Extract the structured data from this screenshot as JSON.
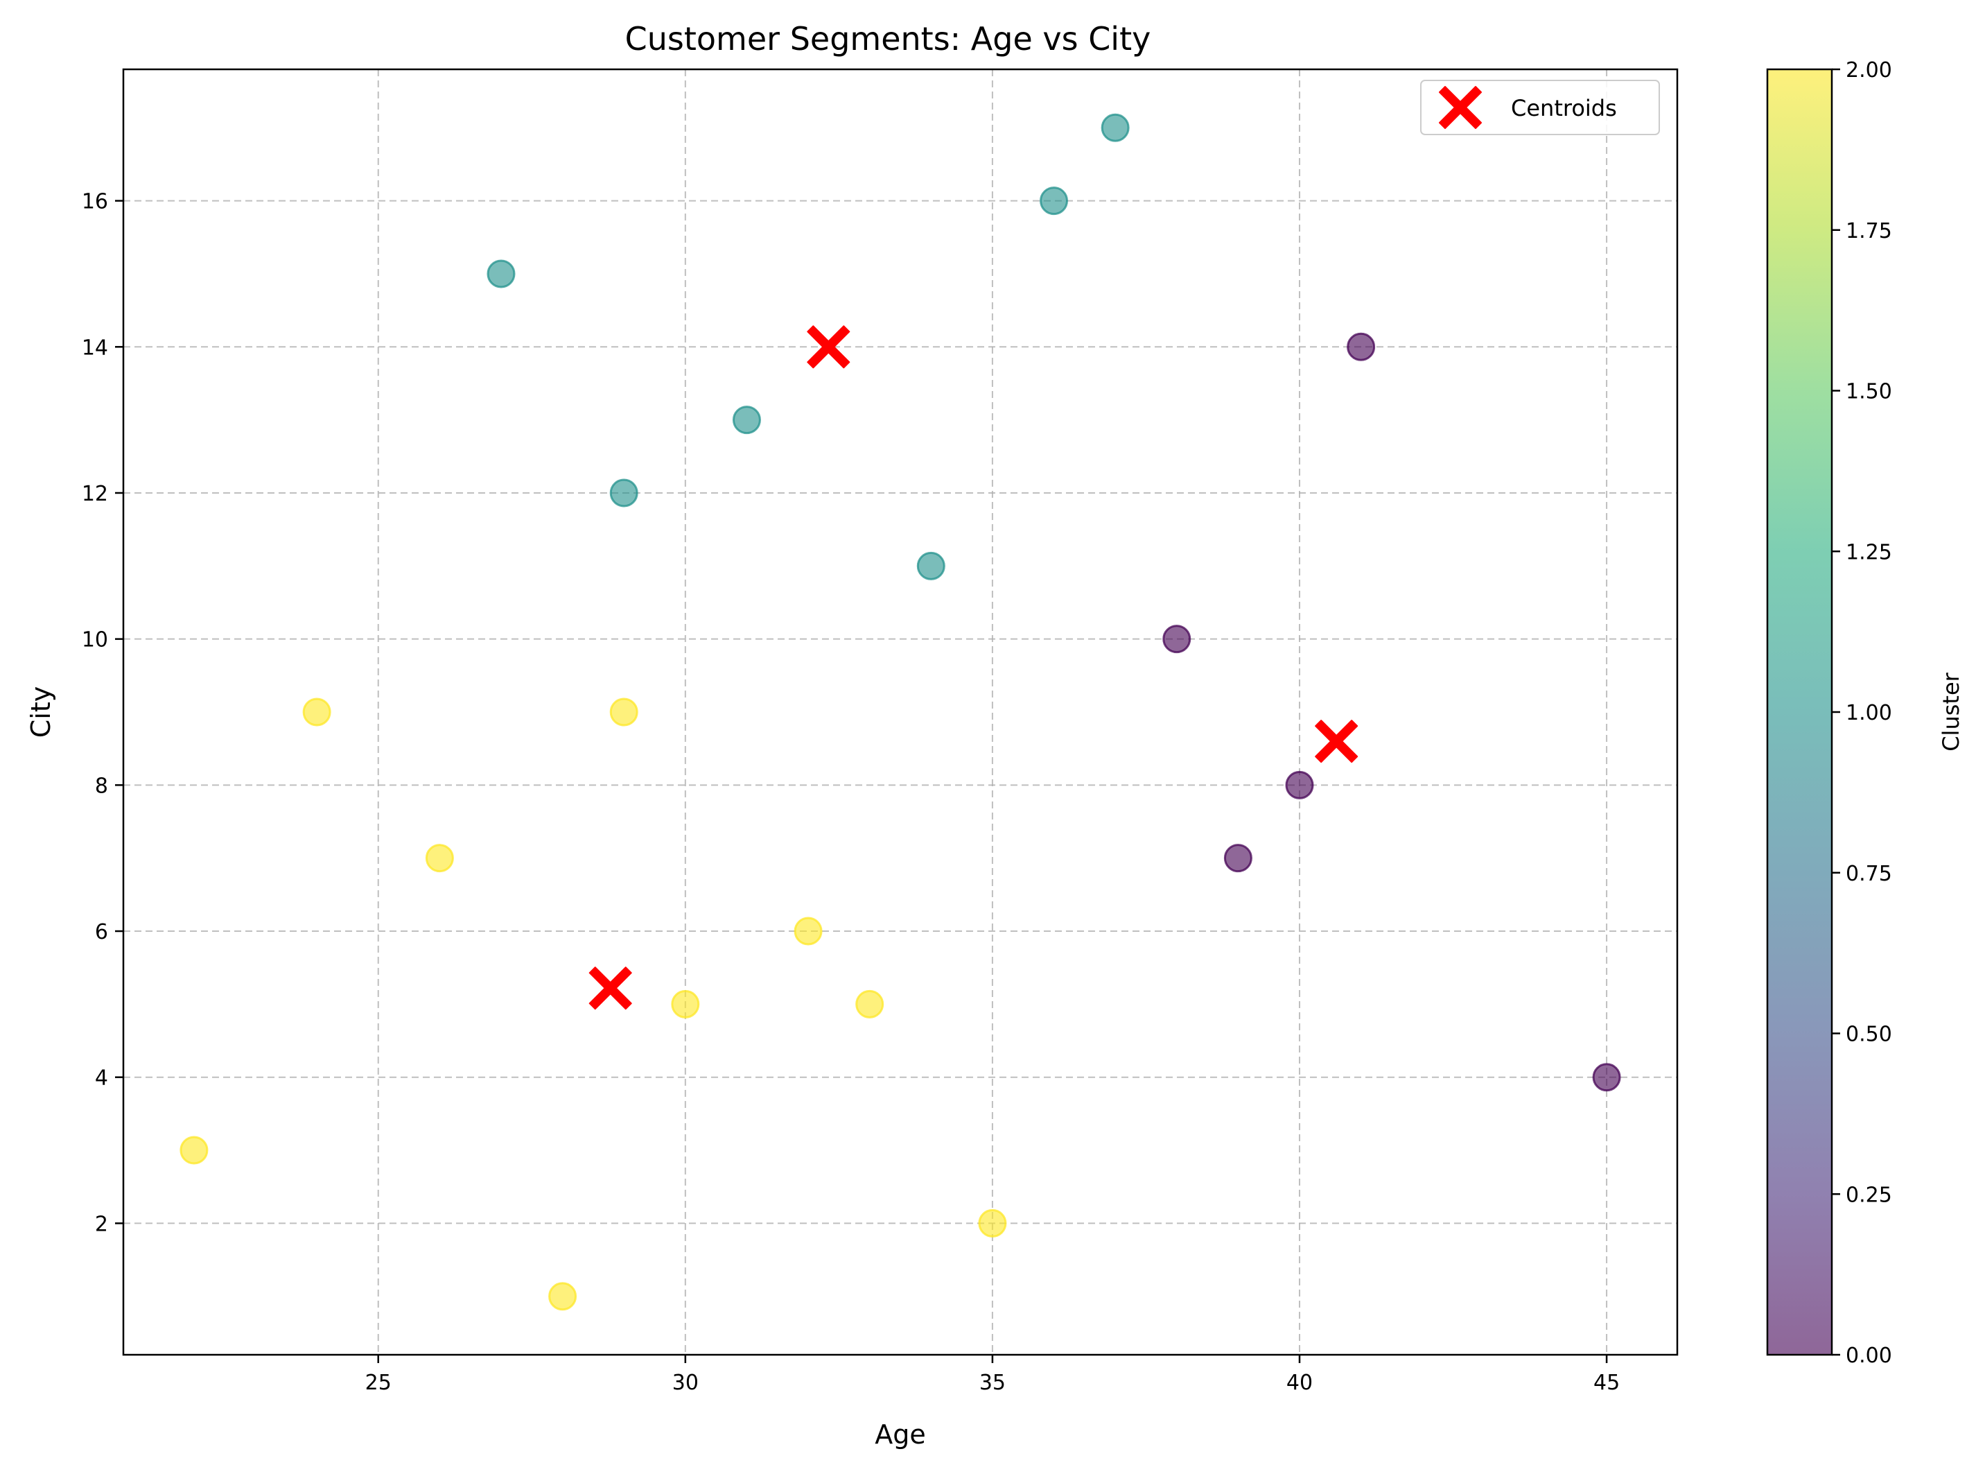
{
  "chart_data": {
    "type": "scatter",
    "title": "Customer Segments: Age vs City",
    "xlabel": "Age",
    "ylabel": "City",
    "xlim": [
      20.85,
      46.15
    ],
    "ylim": [
      0.2,
      17.8
    ],
    "xticks": [
      25,
      30,
      35,
      40,
      45
    ],
    "yticks": [
      2,
      4,
      6,
      8,
      10,
      12,
      14,
      16
    ],
    "grid": true,
    "legend_placement": "top-right",
    "legend_entries": [
      "Centroids"
    ],
    "colormap": "viridis",
    "colorbar": {
      "label": "Cluster",
      "range": [
        0,
        2
      ],
      "ticks": [
        "0.00",
        "0.25",
        "0.50",
        "0.75",
        "1.00",
        "1.25",
        "1.50",
        "1.75",
        "2.00"
      ]
    },
    "cluster_colors": {
      "0": "#440154",
      "1": "#21918c",
      "2": "#fde725"
    },
    "point_alpha": 0.6,
    "points": [
      {
        "x": 22,
        "y": 3,
        "cluster": 2
      },
      {
        "x": 24,
        "y": 9,
        "cluster": 2
      },
      {
        "x": 26,
        "y": 7,
        "cluster": 2
      },
      {
        "x": 28,
        "y": 1,
        "cluster": 2
      },
      {
        "x": 29,
        "y": 9,
        "cluster": 2
      },
      {
        "x": 30,
        "y": 5,
        "cluster": 2
      },
      {
        "x": 32,
        "y": 6,
        "cluster": 2
      },
      {
        "x": 33,
        "y": 5,
        "cluster": 2
      },
      {
        "x": 35,
        "y": 2,
        "cluster": 2
      },
      {
        "x": 27,
        "y": 15,
        "cluster": 1
      },
      {
        "x": 29,
        "y": 12,
        "cluster": 1
      },
      {
        "x": 31,
        "y": 13,
        "cluster": 1
      },
      {
        "x": 34,
        "y": 11,
        "cluster": 1
      },
      {
        "x": 36,
        "y": 16,
        "cluster": 1
      },
      {
        "x": 37,
        "y": 17,
        "cluster": 1
      },
      {
        "x": 38,
        "y": 10,
        "cluster": 0
      },
      {
        "x": 39,
        "y": 7,
        "cluster": 0
      },
      {
        "x": 40,
        "y": 8,
        "cluster": 0
      },
      {
        "x": 41,
        "y": 14,
        "cluster": 0
      },
      {
        "x": 45,
        "y": 4,
        "cluster": 0
      }
    ],
    "centroids": [
      {
        "x": 32.33,
        "y": 14.0
      },
      {
        "x": 40.6,
        "y": 8.6
      },
      {
        "x": 28.78,
        "y": 5.22
      }
    ],
    "centroid_color": "#ff0000"
  }
}
